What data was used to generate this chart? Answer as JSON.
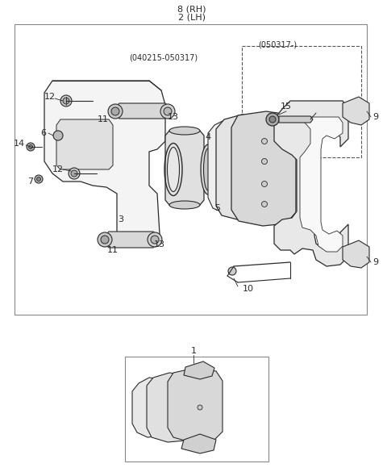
{
  "bg_color": "#ffffff",
  "line_color": "#2a2a2a",
  "fig_width": 4.8,
  "fig_height": 5.85,
  "dpi": 100,
  "title_rh": "8 (RH)",
  "title_lh": "2 (LH)",
  "label_date1": "(040215-050317)",
  "label_date2": "(050317-)"
}
